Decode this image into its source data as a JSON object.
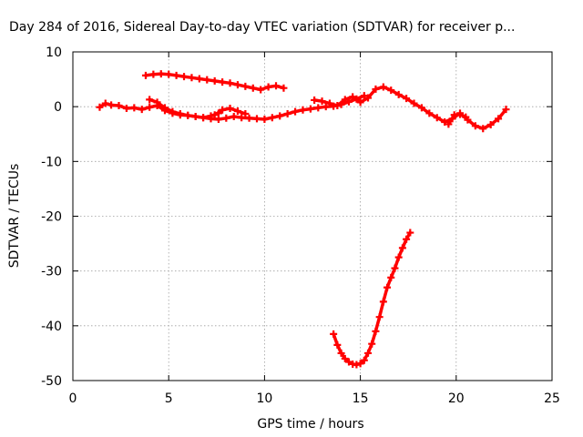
{
  "chart_data": {
    "type": "scatter",
    "title": "Day 284 of 2016, Sidereal Day-to-day VTEC variation (SDTVAR) for receiver p...",
    "xlabel": "GPS time / hours",
    "ylabel": "SDTVAR / TECUs",
    "xlim": [
      0,
      25
    ],
    "ylim": [
      -50,
      10
    ],
    "xticks": [
      0,
      5,
      10,
      15,
      20,
      25
    ],
    "yticks": [
      10,
      0,
      -10,
      -20,
      -30,
      -40,
      -50
    ],
    "grid": true,
    "legend": "none",
    "color": "#ff0000",
    "series": [
      {
        "x": [
          1.4,
          1.7,
          2.0,
          2.4,
          2.8,
          3.2,
          3.6,
          4.0,
          4.4,
          4.8,
          5.2,
          5.6,
          6.0,
          6.4,
          6.8,
          7.2,
          7.6,
          8.0,
          8.4,
          8.8,
          9.2,
          9.6,
          10.0,
          10.4,
          10.8,
          11.2,
          11.6,
          12.0,
          12.4,
          12.8,
          13.2,
          13.6,
          14.0,
          14.4,
          14.8,
          15.2
        ],
        "y": [
          -0.1,
          0.6,
          0.3,
          0.2,
          -0.3,
          -0.2,
          -0.5,
          -0.1,
          0.2,
          -0.7,
          -1.2,
          -1.5,
          -1.6,
          -1.8,
          -2.0,
          -2.2,
          -2.3,
          -2.1,
          -1.8,
          -2.0,
          -2.1,
          -2.2,
          -2.3,
          -2.0,
          -1.7,
          -1.3,
          -0.9,
          -0.6,
          -0.4,
          -0.2,
          0.0,
          0.1,
          0.4,
          0.9,
          1.4,
          2.0
        ]
      },
      {
        "x": [
          3.8,
          4.2,
          4.6,
          5.0,
          5.4,
          5.8,
          6.2,
          6.6,
          7.0,
          7.4,
          7.8,
          8.2,
          8.6,
          9.0,
          9.4,
          9.8,
          10.2,
          10.6,
          11.0
        ],
        "y": [
          5.7,
          5.9,
          6.0,
          5.9,
          5.7,
          5.5,
          5.3,
          5.1,
          4.9,
          4.7,
          4.5,
          4.3,
          4.0,
          3.7,
          3.4,
          3.1,
          3.6,
          3.8,
          3.4
        ]
      },
      {
        "x": [
          4.0,
          4.4,
          4.8,
          5.2,
          5.6,
          6.0,
          6.4,
          6.8,
          7.2,
          7.6
        ],
        "y": [
          1.3,
          0.8,
          -0.2,
          -0.9,
          -1.3,
          -1.6,
          -1.8,
          -2.0,
          -1.7,
          -1.2
        ]
      },
      {
        "x": [
          7.4,
          7.8,
          8.2,
          8.6,
          9.0
        ],
        "y": [
          -1.5,
          -0.6,
          -0.3,
          -0.8,
          -1.3
        ]
      },
      {
        "x": [
          12.6,
          13.0,
          13.4,
          13.8,
          14.2,
          14.6,
          15.0,
          15.4,
          15.8,
          16.2,
          16.6,
          17.0,
          17.4,
          17.8,
          18.2,
          18.6,
          19.0,
          19.4,
          19.8,
          20.2,
          20.6,
          21.0,
          21.4,
          21.8,
          22.2,
          22.6
        ],
        "y": [
          1.2,
          1.0,
          0.6,
          0.2,
          1.3,
          1.8,
          0.8,
          1.6,
          3.2,
          3.6,
          3.0,
          2.2,
          1.5,
          0.6,
          -0.2,
          -1.2,
          -2.0,
          -2.8,
          -2.2,
          -1.2,
          -2.4,
          -3.5,
          -4.0,
          -3.3,
          -2.2,
          -0.5
        ]
      },
      {
        "x": [
          19.6,
          19.9,
          20.2,
          20.5
        ],
        "y": [
          -3.2,
          -1.5,
          -1.4,
          -1.9
        ]
      },
      {
        "x": [
          13.6,
          13.8,
          14.0,
          14.2,
          14.4,
          14.6,
          14.8,
          15.0,
          15.2,
          15.4,
          15.6,
          15.8,
          16.0,
          16.2,
          16.4,
          16.6,
          16.8,
          17.0,
          17.2,
          17.4,
          17.6
        ],
        "y": [
          -41.5,
          -43.5,
          -45.0,
          -46.0,
          -46.6,
          -47.0,
          -47.1,
          -46.9,
          -46.3,
          -45.0,
          -43.3,
          -41.0,
          -38.4,
          -35.6,
          -33.0,
          -31.2,
          -29.5,
          -27.5,
          -25.8,
          -24.2,
          -23.0
        ]
      }
    ]
  }
}
